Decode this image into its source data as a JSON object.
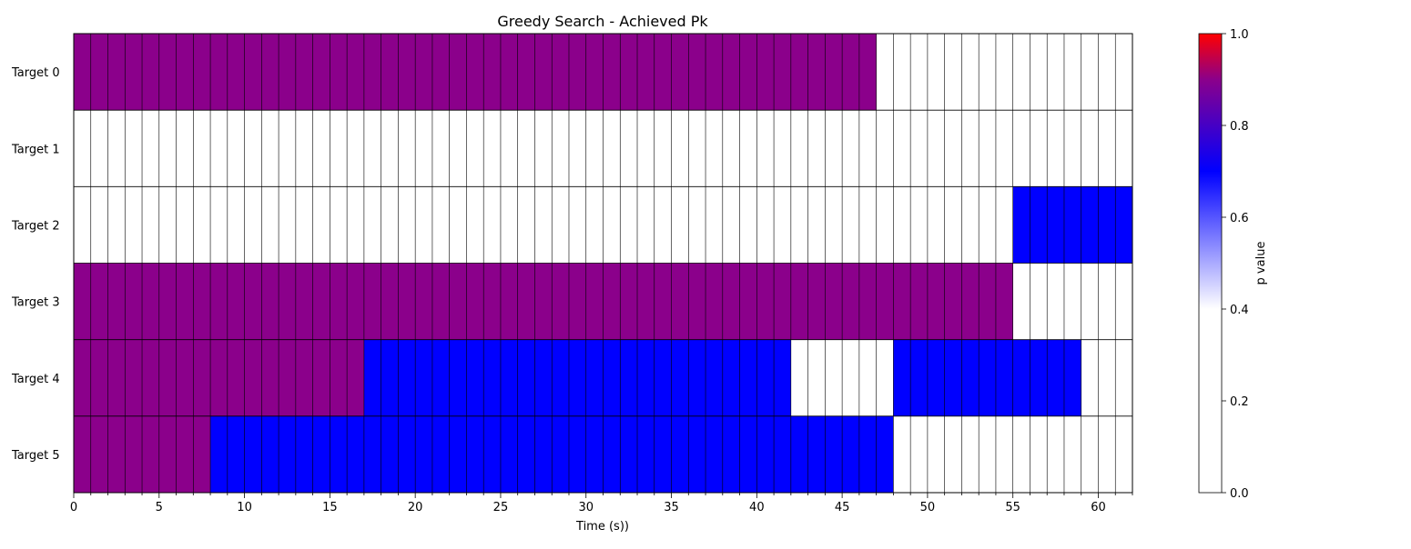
{
  "chart_data": {
    "type": "heatmap",
    "title": "Greedy Search - Achieved Pk",
    "xlabel": "Time (s))",
    "ylabel": "",
    "xlim": [
      0,
      62
    ],
    "x_ticks": [
      0,
      5,
      10,
      15,
      20,
      25,
      30,
      35,
      40,
      45,
      50,
      55,
      60
    ],
    "categories": [
      "Target 0",
      "Target 1",
      "Target 2",
      "Target 3",
      "Target 4",
      "Target 5"
    ],
    "grid": true,
    "segments": [
      {
        "target": 0,
        "start": 0,
        "end": 47,
        "value": 0.9
      },
      {
        "target": 2,
        "start": 55,
        "end": 62,
        "value": 0.7
      },
      {
        "target": 3,
        "start": 0,
        "end": 55,
        "value": 0.9
      },
      {
        "target": 4,
        "start": 0,
        "end": 17,
        "value": 0.9
      },
      {
        "target": 4,
        "start": 17,
        "end": 42,
        "value": 0.7
      },
      {
        "target": 4,
        "start": 48,
        "end": 59,
        "value": 0.7
      },
      {
        "target": 5,
        "start": 0,
        "end": 8,
        "value": 0.9
      },
      {
        "target": 5,
        "start": 8,
        "end": 48,
        "value": 0.7
      }
    ],
    "colorbar": {
      "label": "p value",
      "range": [
        0,
        1
      ],
      "ticks": [
        "0.0",
        "0.2",
        "0.4",
        "0.6",
        "0.8",
        "1.0"
      ],
      "colormap": [
        "#ffffff",
        "#ffffff",
        "#0000ff",
        "#8b008b",
        "#ff0000"
      ],
      "colormap_stops": [
        0,
        0.4,
        0.7,
        0.9,
        1.0
      ]
    }
  }
}
